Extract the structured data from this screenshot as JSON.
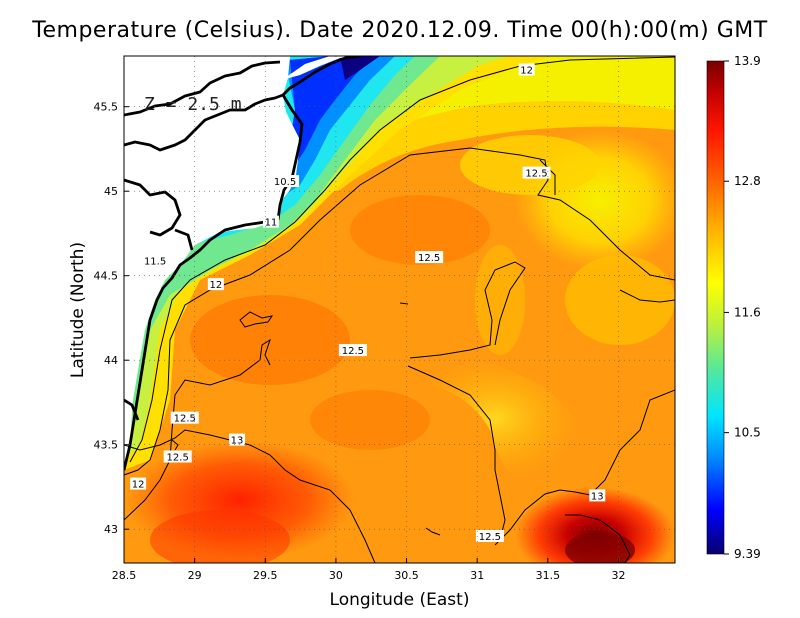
{
  "chart_data": {
    "type": "heatmap",
    "title": "Temperature (Celsius). Date 2020.12.09. Time 00(h):00(m) GMT",
    "xlabel": "Longitude (East)",
    "ylabel": "Latitude (North)",
    "annotation": "Z = 2.5 m",
    "xlim": [
      28.5,
      32.4
    ],
    "ylim": [
      42.8,
      45.8
    ],
    "x_ticks": [
      "28.5",
      "29",
      "29.5",
      "30",
      "30.5",
      "31",
      "31.5",
      "32"
    ],
    "x_tick_values": [
      28.5,
      29,
      29.5,
      30,
      30.5,
      31,
      31.5,
      32
    ],
    "y_ticks": [
      "43",
      "43.5",
      "44",
      "44.5",
      "45",
      "45.5"
    ],
    "y_tick_values": [
      43,
      43.5,
      44,
      44.5,
      45,
      45.5
    ],
    "grid": true,
    "colorbar": {
      "min": 9.39,
      "max": 13.9,
      "tick_labels": [
        "13.9",
        "12.8",
        "11.6",
        "10.5",
        "9.39"
      ],
      "tick_values": [
        13.9,
        12.8,
        11.6,
        10.5,
        9.39
      ],
      "colormap": [
        "#08006e",
        "#0000ff",
        "#0090ff",
        "#00e5ff",
        "#50e8a0",
        "#b8f040",
        "#ffff00",
        "#ffb000",
        "#ff6000",
        "#ff1500",
        "#c00000",
        "#780000"
      ]
    },
    "contour_labels": [
      {
        "text": "12",
        "lon": 31.35,
        "lat": 45.72
      },
      {
        "text": "12.5",
        "lon": 31.42,
        "lat": 45.11
      },
      {
        "text": "10.5",
        "lon": 29.64,
        "lat": 45.06
      },
      {
        "text": "11",
        "lon": 29.54,
        "lat": 44.82
      },
      {
        "text": "11.5",
        "lon": 28.72,
        "lat": 44.59
      },
      {
        "text": "12",
        "lon": 29.15,
        "lat": 44.45
      },
      {
        "text": "12.5",
        "lon": 30.66,
        "lat": 44.61
      },
      {
        "text": "12.5",
        "lon": 30.12,
        "lat": 44.06
      },
      {
        "text": "12.5",
        "lon": 28.93,
        "lat": 43.66
      },
      {
        "text": "13",
        "lon": 29.3,
        "lat": 43.53
      },
      {
        "text": "12.5",
        "lon": 28.88,
        "lat": 43.43
      },
      {
        "text": "12",
        "lon": 28.6,
        "lat": 43.27
      },
      {
        "text": "13",
        "lon": 31.85,
        "lat": 43.2
      },
      {
        "text": "12.5",
        "lon": 31.09,
        "lat": 42.96
      }
    ]
  }
}
